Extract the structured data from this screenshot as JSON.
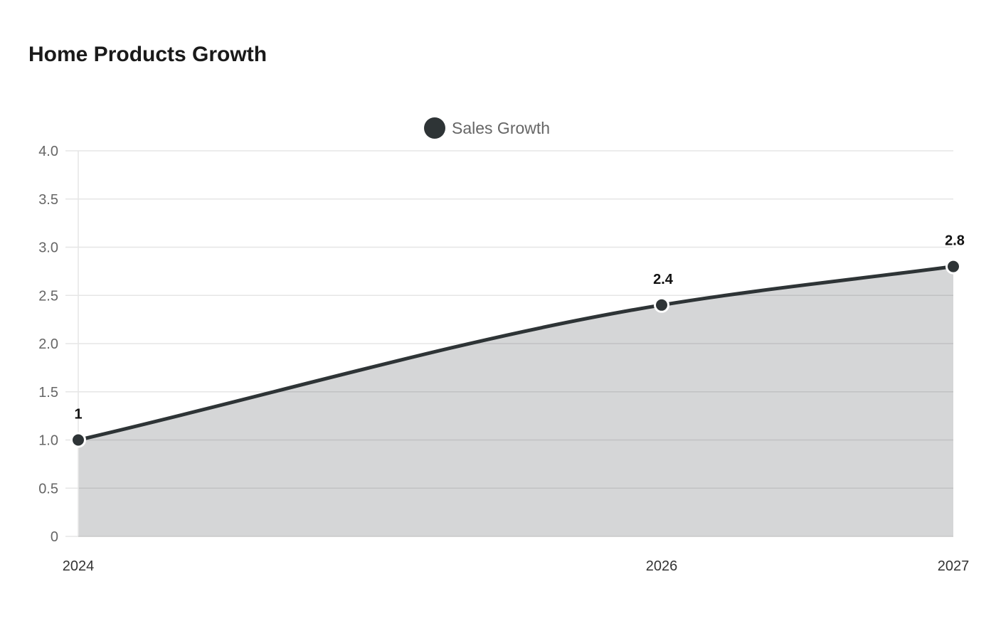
{
  "chart_data": {
    "type": "area",
    "title": "Home Products Growth",
    "categories": [
      "2024",
      "2026",
      "2027"
    ],
    "series": [
      {
        "name": "Sales Growth",
        "values": [
          1,
          2.4,
          2.8
        ]
      }
    ],
    "data_labels": [
      "1",
      "2.4",
      "2.8"
    ],
    "y_ticks": [
      "0",
      "0.5",
      "1.0",
      "1.5",
      "2.0",
      "2.5",
      "3.0",
      "3.5",
      "4.0"
    ],
    "ylim": [
      0,
      4
    ],
    "grid": true,
    "legend_position": "top-center",
    "colors": {
      "line": "#2e3436",
      "fill": "#d5d7d6",
      "grid": "#e6e6e6",
      "axis": "#cccccc"
    }
  }
}
